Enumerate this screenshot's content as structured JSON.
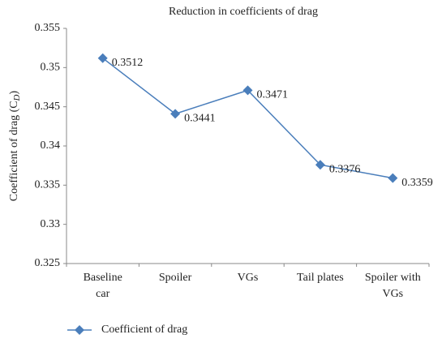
{
  "chart_data": {
    "type": "line",
    "title": "Reduction in coefficients of drag",
    "y_label": {
      "text": "Coefficient of drag (C",
      "sub": "D",
      "end": ")"
    },
    "categories": [
      [
        "Baseline",
        "car"
      ],
      [
        "Spoiler"
      ],
      [
        "VGs"
      ],
      [
        "Tail plates"
      ],
      [
        "Spoiler with",
        "VGs"
      ]
    ],
    "series": [
      {
        "name": "Coefficient of drag",
        "color": "#4a7ebb",
        "values": [
          0.3512,
          0.3441,
          0.3471,
          0.3376,
          0.3359
        ]
      }
    ],
    "ylim": [
      0.325,
      0.355
    ],
    "yticks": [
      0.325,
      0.33,
      0.335,
      0.34,
      0.345,
      0.35,
      0.355
    ],
    "grid": false,
    "legend": "bottom",
    "data_labels": true
  }
}
